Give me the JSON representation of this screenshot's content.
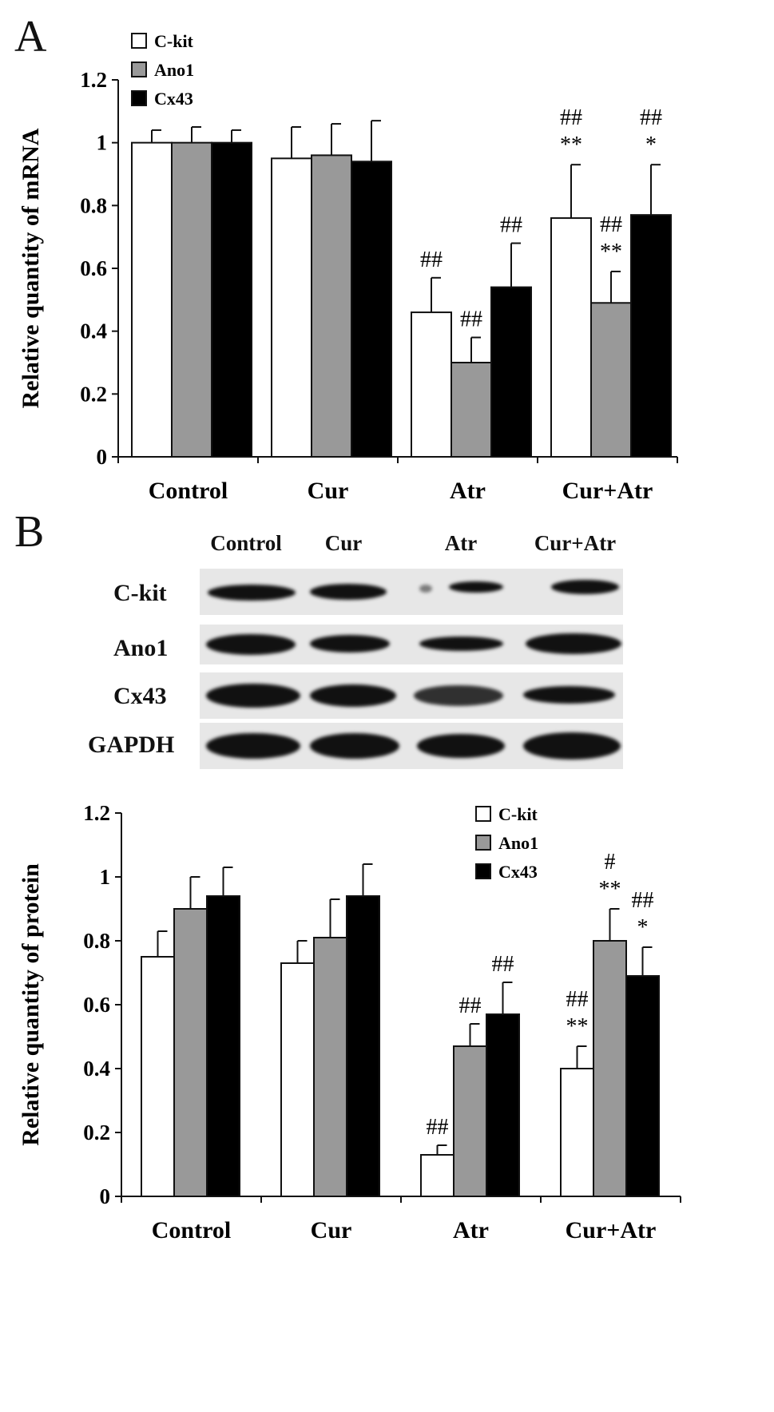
{
  "panel_a": {
    "letter": "A",
    "chart_data": {
      "type": "bar",
      "title": "",
      "xlabel": "",
      "ylabel": "Relative quantity of mRNA",
      "categories": [
        "Control",
        "Cur",
        "Atr",
        "Cur+Atr"
      ],
      "ylim": [
        0,
        1.2
      ],
      "yticks": [
        "0",
        "0.2",
        "0.4",
        "0.6",
        "0.8",
        "1",
        "1.2"
      ],
      "legend_position": "top-left",
      "series": [
        {
          "name": "C-kit",
          "color": "#ffffff",
          "values": [
            1.0,
            0.95,
            0.46,
            0.76
          ],
          "errors": [
            0.04,
            0.1,
            0.11,
            0.17
          ],
          "annotations": [
            [
              "",
              ""
            ],
            [
              "",
              ""
            ],
            [
              "##",
              ""
            ],
            [
              "##",
              "**"
            ]
          ]
        },
        {
          "name": "Ano1",
          "color": "#999999",
          "values": [
            1.0,
            0.96,
            0.3,
            0.49
          ],
          "errors": [
            0.05,
            0.1,
            0.08,
            0.1
          ],
          "annotations": [
            [
              "",
              ""
            ],
            [
              "",
              ""
            ],
            [
              "##",
              ""
            ],
            [
              "##",
              "**"
            ]
          ]
        },
        {
          "name": "Cx43",
          "color": "#000000",
          "values": [
            1.0,
            0.94,
            0.54,
            0.77
          ],
          "errors": [
            0.04,
            0.13,
            0.14,
            0.16
          ],
          "annotations": [
            [
              "",
              ""
            ],
            [
              "",
              ""
            ],
            [
              "##",
              ""
            ],
            [
              "##",
              "*"
            ]
          ]
        }
      ]
    }
  },
  "panel_b": {
    "letter": "B",
    "blot": {
      "lanes": [
        "Control",
        "Cur",
        "Atr",
        "Cur+Atr"
      ],
      "rows": [
        "C-kit",
        "Ano1",
        "Cx43",
        "GAPDH"
      ]
    },
    "chart_data": {
      "type": "bar",
      "title": "",
      "xlabel": "",
      "ylabel": "Relative quantity of protein",
      "categories": [
        "Control",
        "Cur",
        "Atr",
        "Cur+Atr"
      ],
      "ylim": [
        0,
        1.2
      ],
      "yticks": [
        "0",
        "0.2",
        "0.4",
        "0.6",
        "0.8",
        "1",
        "1.2"
      ],
      "legend_position": "top-right",
      "series": [
        {
          "name": "C-kit",
          "color": "#ffffff",
          "values": [
            0.75,
            0.73,
            0.13,
            0.4
          ],
          "errors": [
            0.08,
            0.07,
            0.03,
            0.07
          ],
          "annotations": [
            [
              "",
              ""
            ],
            [
              "",
              ""
            ],
            [
              "##",
              ""
            ],
            [
              "##",
              "**"
            ]
          ]
        },
        {
          "name": "Ano1",
          "color": "#999999",
          "values": [
            0.9,
            0.81,
            0.47,
            0.8
          ],
          "errors": [
            0.1,
            0.12,
            0.07,
            0.1
          ],
          "annotations": [
            [
              "",
              ""
            ],
            [
              "",
              ""
            ],
            [
              "##",
              ""
            ],
            [
              "#",
              "**"
            ]
          ]
        },
        {
          "name": "Cx43",
          "color": "#000000",
          "values": [
            0.94,
            0.94,
            0.57,
            0.69
          ],
          "errors": [
            0.09,
            0.1,
            0.1,
            0.09
          ],
          "annotations": [
            [
              "",
              ""
            ],
            [
              "",
              ""
            ],
            [
              "##",
              ""
            ],
            [
              "##",
              "*"
            ]
          ]
        }
      ]
    }
  }
}
